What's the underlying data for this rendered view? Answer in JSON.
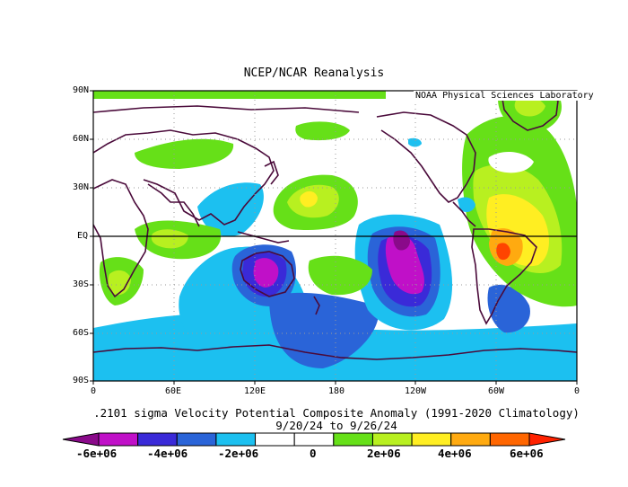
{
  "header": {
    "title": "NCEP/NCAR Reanalysis"
  },
  "map": {
    "credit": "NOAA Physical Sciences Laboratory",
    "lat_ticks": [
      "90N",
      "60N",
      "30N",
      "EQ",
      "30S",
      "60S",
      "90S"
    ],
    "lon_ticks": [
      "0",
      "60E",
      "120E",
      "180",
      "120W",
      "60W",
      "0"
    ],
    "projection": "cylindrical equidistant, 0-360 longitude",
    "gridlines": "dotted"
  },
  "caption": {
    "line1": ".2101 sigma Velocity Potential  Composite Anomaly (1991-2020 Climatology)",
    "line2": "9/20/24  to 9/26/24"
  },
  "colorbar": {
    "labels": [
      "-6e+06",
      "-4e+06",
      "-2e+06",
      "0",
      "2e+06",
      "4e+06",
      "6e+06"
    ],
    "colors": [
      "#8a0a8a",
      "#c010c8",
      "#3a2ad8",
      "#2a64d8",
      "#1cc0f0",
      "#ffffff",
      "#ffffff",
      "#66e018",
      "#b8f020",
      "#ffee22",
      "#ffaa10",
      "#ff6600",
      "#ff2200"
    ]
  },
  "chart_data": {
    "type": "heatmap",
    "variable": "sigma Velocity Potential Composite Anomaly",
    "level": ".2101 sigma",
    "period": "9/20/24 to 9/26/24",
    "climatology": "1991-2020",
    "levels": [
      -6000000,
      -5000000,
      -4000000,
      -3000000,
      -2000000,
      -1000000,
      0,
      1000000,
      2000000,
      3000000,
      4000000,
      5000000,
      6000000
    ],
    "features": [
      {
        "name": "negative anomaly over Australia",
        "lon": 125,
        "lat": -25,
        "value": -5000000
      },
      {
        "name": "negative anomaly central Pacific",
        "lon": 213,
        "lat": -15,
        "value": -5000000
      },
      {
        "name": "positive anomaly South America",
        "lon": 300,
        "lat": -12,
        "value": 5500000
      },
      {
        "name": "positive anomaly Africa",
        "lon": 30,
        "lat": -5,
        "value": 2500000
      },
      {
        "name": "positive anomaly subtropical North Pacific",
        "lon": 150,
        "lat": 25,
        "value": 2500000
      }
    ]
  }
}
